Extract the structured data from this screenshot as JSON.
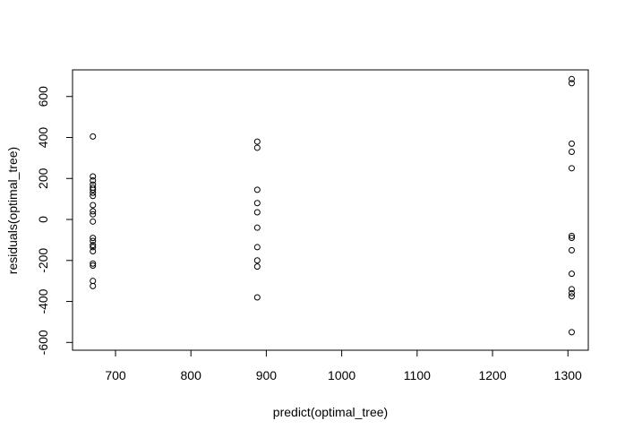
{
  "chart_data": {
    "type": "scatter",
    "title": "",
    "xlabel": "predict(optimal_tree)",
    "ylabel": "residuals(optimal_tree)",
    "xlim": [
      643,
      1327
    ],
    "ylim": [
      -638,
      730
    ],
    "x_ticks": [
      700,
      800,
      900,
      1000,
      1100,
      1200,
      1300
    ],
    "y_ticks": [
      -600,
      -400,
      -200,
      0,
      200,
      400,
      600
    ],
    "x_tick_labels": [
      "700",
      "800",
      "900",
      "1000",
      "1100",
      "1200",
      "1300"
    ],
    "y_tick_labels": [
      "-600",
      "-400",
      "-200",
      "0",
      "200",
      "400",
      "600"
    ],
    "marker": "open-circle",
    "grid": false,
    "legend": "none",
    "colors": {
      "points": "#000000",
      "axes": "#000000",
      "background": "#ffffff"
    },
    "series": [
      {
        "points": [
          {
            "x": 670,
            "y": 405
          },
          {
            "x": 670,
            "y": 210
          },
          {
            "x": 670,
            "y": 190
          },
          {
            "x": 670,
            "y": 170
          },
          {
            "x": 670,
            "y": 155
          },
          {
            "x": 670,
            "y": 145
          },
          {
            "x": 670,
            "y": 130
          },
          {
            "x": 670,
            "y": 115
          },
          {
            "x": 670,
            "y": 70
          },
          {
            "x": 670,
            "y": 40
          },
          {
            "x": 670,
            "y": 25
          },
          {
            "x": 670,
            "y": -10
          },
          {
            "x": 670,
            "y": -90
          },
          {
            "x": 670,
            "y": -105
          },
          {
            "x": 670,
            "y": -125
          },
          {
            "x": 670,
            "y": -135
          },
          {
            "x": 670,
            "y": -155
          },
          {
            "x": 670,
            "y": -215
          },
          {
            "x": 670,
            "y": -225
          },
          {
            "x": 670,
            "y": -300
          },
          {
            "x": 670,
            "y": -325
          },
          {
            "x": 888,
            "y": 380
          },
          {
            "x": 888,
            "y": 350
          },
          {
            "x": 888,
            "y": 145
          },
          {
            "x": 888,
            "y": 80
          },
          {
            "x": 888,
            "y": 35
          },
          {
            "x": 888,
            "y": -40
          },
          {
            "x": 888,
            "y": -135
          },
          {
            "x": 888,
            "y": -200
          },
          {
            "x": 888,
            "y": -230
          },
          {
            "x": 888,
            "y": -380
          },
          {
            "x": 1305,
            "y": 685
          },
          {
            "x": 1305,
            "y": 665
          },
          {
            "x": 1305,
            "y": 370
          },
          {
            "x": 1305,
            "y": 330
          },
          {
            "x": 1305,
            "y": 250
          },
          {
            "x": 1305,
            "y": -80
          },
          {
            "x": 1305,
            "y": -90
          },
          {
            "x": 1305,
            "y": -150
          },
          {
            "x": 1305,
            "y": -265
          },
          {
            "x": 1305,
            "y": -340
          },
          {
            "x": 1305,
            "y": -360
          },
          {
            "x": 1305,
            "y": -375
          },
          {
            "x": 1305,
            "y": -550
          }
        ]
      }
    ]
  }
}
